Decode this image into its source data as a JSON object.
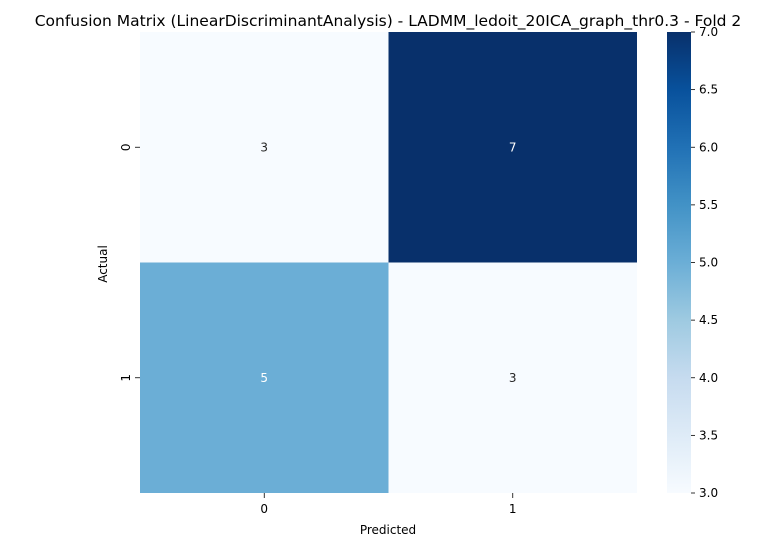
{
  "chart_data": {
    "type": "heatmap",
    "title": "Confusion Matrix (LinearDiscriminantAnalysis) - LADMM_ledoit_20ICA_graph_thr0.3 - Fold 2",
    "xlabel": "Predicted",
    "ylabel": "Actual",
    "x_categories": [
      "0",
      "1"
    ],
    "y_categories": [
      "0",
      "1"
    ],
    "values": [
      [
        3,
        7
      ],
      [
        5,
        3
      ]
    ],
    "colormap": "Blues",
    "colorbar": {
      "min": 3.0,
      "max": 7.0,
      "ticks": [
        "3.0",
        "3.5",
        "4.0",
        "4.5",
        "5.0",
        "5.5",
        "6.0",
        "6.5",
        "7.0"
      ]
    },
    "colors": {
      "low": "#f7fbff",
      "high": "#08306b",
      "text_dark": "#262626",
      "text_light": "#ffffff"
    }
  }
}
